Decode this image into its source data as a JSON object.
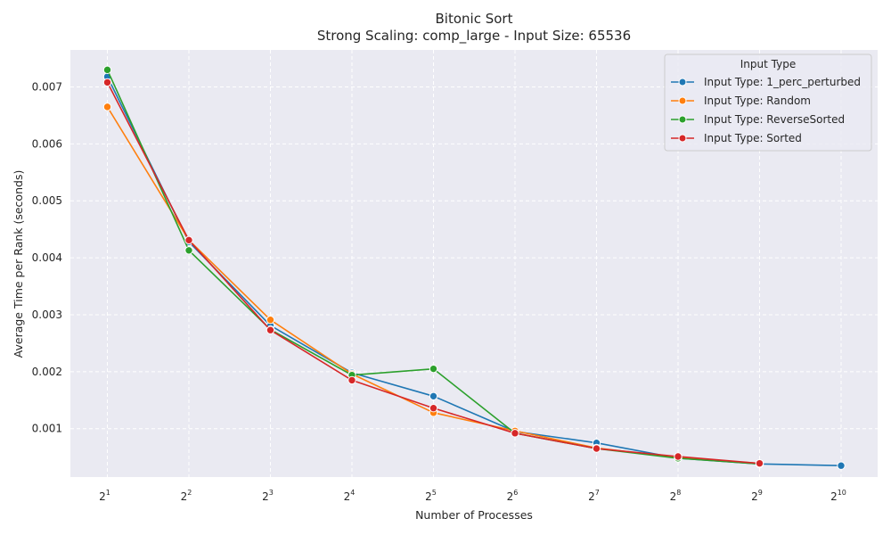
{
  "chart_data": {
    "type": "line",
    "title": "Bitonic Sort",
    "subtitle": "Strong Scaling: comp_large - Input Size: 65536",
    "xlabel": "Number of Processes",
    "ylabel": "Average Time per Rank (seconds)",
    "x_scale": "log2",
    "x": [
      2,
      4,
      8,
      16,
      32,
      64,
      128,
      256,
      512,
      1024
    ],
    "x_tick_base": "2",
    "x_tick_exponents": [
      "1",
      "2",
      "3",
      "4",
      "5",
      "6",
      "7",
      "8",
      "9",
      "10"
    ],
    "ylim": [
      0.00015,
      0.00765
    ],
    "y_ticks": [
      0.001,
      0.002,
      0.003,
      0.004,
      0.005,
      0.006,
      0.007
    ],
    "y_tick_labels": [
      "0.001",
      "0.002",
      "0.003",
      "0.004",
      "0.005",
      "0.006",
      "0.007"
    ],
    "grid": true,
    "legend": {
      "title": "Input Type",
      "placement": "top-right"
    },
    "series": [
      {
        "name": "Input Type: 1_perc_perturbed",
        "color": "#1f77b4",
        "values": [
          0.00718,
          0.00428,
          0.00281,
          0.00198,
          0.00157,
          0.00095,
          0.00075,
          0.00048,
          0.00038,
          0.00035
        ]
      },
      {
        "name": "Input Type: Random",
        "color": "#ff7f0e",
        "values": [
          0.00665,
          0.00431,
          0.00291,
          0.00196,
          0.00128,
          0.00096,
          0.00066,
          0.00049,
          0.00039,
          null
        ]
      },
      {
        "name": "Input Type: ReverseSorted",
        "color": "#2ca02c",
        "values": [
          0.0073,
          0.00413,
          0.00274,
          0.00194,
          0.00205,
          0.00092,
          0.00065,
          0.00048,
          0.00038,
          null
        ]
      },
      {
        "name": "Input Type: Sorted",
        "color": "#d62728",
        "values": [
          0.00708,
          0.00431,
          0.00273,
          0.00185,
          0.00136,
          0.00092,
          0.00065,
          0.00051,
          0.00039,
          null
        ]
      }
    ]
  }
}
